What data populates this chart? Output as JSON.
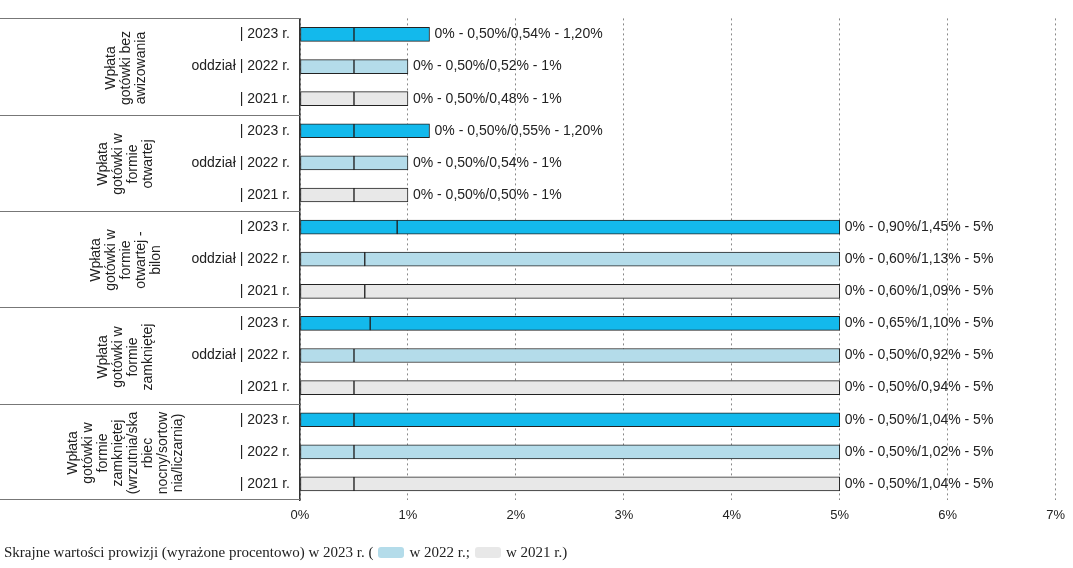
{
  "chart_data": {
    "type": "bar",
    "orientation": "horizontal",
    "stacked": true,
    "categories": [
      "| 2023 r.",
      "oddział | 2022 r.",
      "| 2021 r.",
      "| 2023 r.",
      "oddział | 2022 r.",
      "| 2021 r.",
      "| 2023 r.",
      "oddział | 2022 r.",
      "| 2021 r.",
      "| 2023 r.",
      "oddział | 2022 r.",
      "| 2021 r.",
      "| 2023 r.",
      "| 2022 r.",
      "| 2021 r."
    ],
    "series": [
      {
        "colors": [
          "#13b9ec",
          "#b4dcea",
          "#e8e8e8",
          "#13b9ec",
          "#b4dcea",
          "#e8e8e8",
          "#13b9ec",
          "#b4dcea",
          "#e8e8e8",
          "#13b9ec",
          "#b4dcea",
          "#e8e8e8",
          "#13b9ec",
          "#b4dcea",
          "#e8e8e8"
        ],
        "values": [
          0.5,
          0.5,
          0.5,
          0.5,
          0.5,
          0.5,
          0.9,
          0.6,
          0.6,
          0.65,
          0.5,
          0.5,
          0.5,
          0.5,
          0.5
        ]
      },
      {
        "colors": [
          "#13b9ec",
          "#b4dcea",
          "#e8e8e8",
          "#13b9ec",
          "#b4dcea",
          "#e8e8e8",
          "#13b9ec",
          "#b4dcea",
          "#e8e8e8",
          "#13b9ec",
          "#b4dcea",
          "#e8e8e8",
          "#13b9ec",
          "#b4dcea",
          "#e8e8e8"
        ],
        "values": [
          0.7,
          0.5,
          0.5,
          0.7,
          0.5,
          0.5,
          4.1,
          4.4,
          4.4,
          4.35,
          4.5,
          4.5,
          4.5,
          4.5,
          4.5
        ]
      }
    ],
    "xlim": [
      0,
      7
    ],
    "xticks": [
      {
        "value": 0,
        "label": "0%"
      },
      {
        "value": 1,
        "label": "1%"
      },
      {
        "value": 2,
        "label": "2%"
      },
      {
        "value": 3,
        "label": "3%"
      },
      {
        "value": 4,
        "label": "4%"
      },
      {
        "value": 5,
        "label": "5%"
      },
      {
        "value": 6,
        "label": "6%"
      },
      {
        "value": 7,
        "label": "7%"
      }
    ],
    "grid": "x",
    "legend": false,
    "annotations": [
      "Wpłata gotówki bez awizowania",
      "Wpłata gotówki w formie otwartej",
      "Wpłata gotówki w formie otwartej - bilon",
      "Wpłata gotówki w formie zamkniętej",
      "Wpłata gotówki w formie zamkniętej (wrzutnia/skarbiec nocny/sortownia/liczarnia)",
      "0% - 0,50%/0,54% - 1,20%",
      "0% - 0,50%/0,52% - 1%",
      "0% - 0,50%/0,48% - 1%",
      "0% - 0,50%/0,55% - 1,20%",
      "0% - 0,50%/0,54% - 1%",
      "0% - 0,50%/0,50% - 1%",
      "0% - 0,90%/1,45% - 5%",
      "0% - 0,60%/1,13% - 5%",
      "0% - 0,60%/1,09% - 5%",
      "0% - 0,65%/1,10% - 5%",
      "0% - 0,50%/0,92% - 5%",
      "0% - 0,50%/0,94% - 5%",
      "0% - 0,50%/1,04% - 5%",
      "0% - 0,50%/1,02% - 5%",
      "0% - 0,50%/1,04% - 5%",
      "Skrajne wartości prowizji (wyrażone procentowo) w 2023 r. (",
      "w 2022 r.;",
      "w 2021 r.)"
    ]
  }
}
